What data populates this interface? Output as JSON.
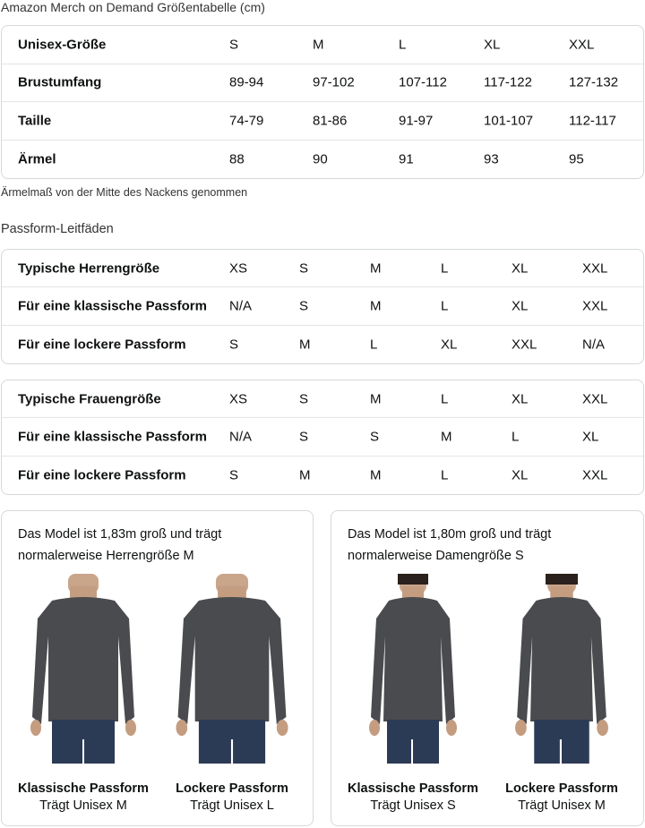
{
  "title": "Amazon Merch on Demand Größentabelle (cm)",
  "size_table": {
    "rows": [
      [
        "Unisex-Größe",
        "S",
        "M",
        "L",
        "XL",
        "XXL"
      ],
      [
        "Brustumfang",
        "89-94",
        "97-102",
        "107-112",
        "117-122",
        "127-132"
      ],
      [
        "Taille",
        "74-79",
        "81-86",
        "91-97",
        "101-107",
        "112-117"
      ],
      [
        "Ärmel",
        "88",
        "90",
        "91",
        "93",
        "95"
      ]
    ]
  },
  "note": "Ärmelmaß von der Mitte des Nackens genommen",
  "fit_heading": "Passform-Leitfäden",
  "men_table": {
    "rows": [
      [
        "Typische Herrengröße",
        "XS",
        "S",
        "M",
        "L",
        "XL",
        "XXL"
      ],
      [
        "Für eine klassische Passform",
        "N/A",
        "S",
        "M",
        "L",
        "XL",
        "XXL"
      ],
      [
        "Für eine lockere Passform",
        "S",
        "M",
        "L",
        "XL",
        "XXL",
        "N/A"
      ]
    ]
  },
  "women_table": {
    "rows": [
      [
        "Typische Frauengröße",
        "XS",
        "S",
        "M",
        "L",
        "XL",
        "XXL"
      ],
      [
        "Für eine klassische Passform",
        "N/A",
        "S",
        "S",
        "M",
        "L",
        "XL"
      ],
      [
        "Für eine lockere Passform",
        "S",
        "M",
        "M",
        "L",
        "XL",
        "XXL"
      ]
    ]
  },
  "cards": [
    {
      "desc": "Das Model ist 1,83m groß und trägt normalerweise Herrengröße M",
      "figs": [
        {
          "title": "Klassische Passform",
          "sub": "Trägt Unisex M"
        },
        {
          "title": "Lockere Passform",
          "sub": "Trägt Unisex L"
        }
      ]
    },
    {
      "desc": "Das Model ist 1,80m groß und trägt normalerweise Damengröße S",
      "figs": [
        {
          "title": "Klassische Passform",
          "sub": "Trägt Unisex S"
        },
        {
          "title": "Lockere Passform",
          "sub": "Trägt Unisex M"
        }
      ]
    }
  ],
  "colors": {
    "shirt": "#4a4b4e",
    "jeans": "#2c3b55",
    "border": "#d5d9d9"
  }
}
